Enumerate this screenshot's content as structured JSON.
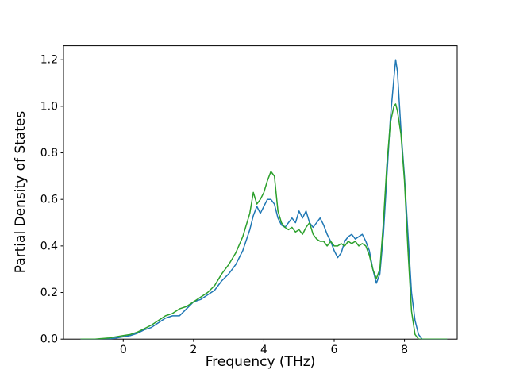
{
  "figure": {
    "background": "#ffffff"
  },
  "chart_data": {
    "type": "line",
    "title": "",
    "xlabel": "Frequency (THz)",
    "ylabel": "Partial Density of States",
    "xlim": [
      -1.7,
      9.5
    ],
    "ylim": [
      0,
      1.26
    ],
    "grid": false,
    "legend": null,
    "xticks": {
      "values": [
        0,
        2,
        4,
        6,
        8
      ],
      "labels": [
        "0",
        "2",
        "4",
        "6",
        "8"
      ]
    },
    "yticks": {
      "values": [
        0.0,
        0.2,
        0.4,
        0.6,
        0.8,
        1.0,
        1.2
      ],
      "labels": [
        "0.0",
        "0.2",
        "0.4",
        "0.6",
        "0.8",
        "1.0",
        "1.2"
      ]
    },
    "x": [
      -1.2,
      -0.8,
      -0.4,
      -0.2,
      0.0,
      0.2,
      0.4,
      0.6,
      0.8,
      1.0,
      1.2,
      1.4,
      1.6,
      1.8,
      2.0,
      2.2,
      2.4,
      2.6,
      2.8,
      3.0,
      3.2,
      3.4,
      3.6,
      3.7,
      3.8,
      3.9,
      4.0,
      4.1,
      4.2,
      4.3,
      4.4,
      4.5,
      4.6,
      4.7,
      4.8,
      4.9,
      5.0,
      5.1,
      5.2,
      5.3,
      5.4,
      5.5,
      5.6,
      5.7,
      5.8,
      5.9,
      6.0,
      6.1,
      6.2,
      6.3,
      6.4,
      6.5,
      6.6,
      6.7,
      6.8,
      6.9,
      7.0,
      7.1,
      7.2,
      7.3,
      7.4,
      7.5,
      7.6,
      7.7,
      7.75,
      7.8,
      7.9,
      8.0,
      8.1,
      8.2,
      8.3,
      8.4,
      8.5,
      8.8,
      9.2
    ],
    "series": [
      {
        "name": "series-blue",
        "color": "#1f77b4",
        "values": [
          0.0,
          0.0,
          0.0,
          0.005,
          0.01,
          0.015,
          0.025,
          0.04,
          0.05,
          0.07,
          0.09,
          0.1,
          0.1,
          0.13,
          0.16,
          0.17,
          0.19,
          0.21,
          0.25,
          0.28,
          0.32,
          0.38,
          0.47,
          0.53,
          0.57,
          0.54,
          0.57,
          0.6,
          0.6,
          0.58,
          0.52,
          0.49,
          0.48,
          0.5,
          0.52,
          0.5,
          0.55,
          0.52,
          0.55,
          0.5,
          0.48,
          0.5,
          0.52,
          0.49,
          0.45,
          0.42,
          0.38,
          0.35,
          0.37,
          0.42,
          0.44,
          0.45,
          0.43,
          0.44,
          0.45,
          0.42,
          0.38,
          0.3,
          0.24,
          0.28,
          0.45,
          0.7,
          0.95,
          1.12,
          1.2,
          1.15,
          0.9,
          0.7,
          0.45,
          0.2,
          0.08,
          0.02,
          0.0,
          0.0,
          0.0
        ]
      },
      {
        "name": "series-green",
        "color": "#2ca02c",
        "values": [
          0.0,
          0.0,
          0.005,
          0.01,
          0.015,
          0.02,
          0.03,
          0.045,
          0.06,
          0.08,
          0.1,
          0.11,
          0.13,
          0.14,
          0.16,
          0.18,
          0.2,
          0.23,
          0.28,
          0.32,
          0.37,
          0.44,
          0.54,
          0.63,
          0.58,
          0.6,
          0.63,
          0.68,
          0.72,
          0.7,
          0.55,
          0.5,
          0.48,
          0.47,
          0.48,
          0.46,
          0.47,
          0.45,
          0.48,
          0.5,
          0.45,
          0.43,
          0.42,
          0.42,
          0.4,
          0.42,
          0.4,
          0.4,
          0.41,
          0.4,
          0.42,
          0.41,
          0.42,
          0.4,
          0.41,
          0.4,
          0.36,
          0.3,
          0.26,
          0.3,
          0.5,
          0.75,
          0.93,
          1.0,
          1.01,
          0.98,
          0.88,
          0.68,
          0.38,
          0.12,
          0.02,
          0.0,
          0.0,
          0.0,
          0.0
        ]
      }
    ]
  }
}
